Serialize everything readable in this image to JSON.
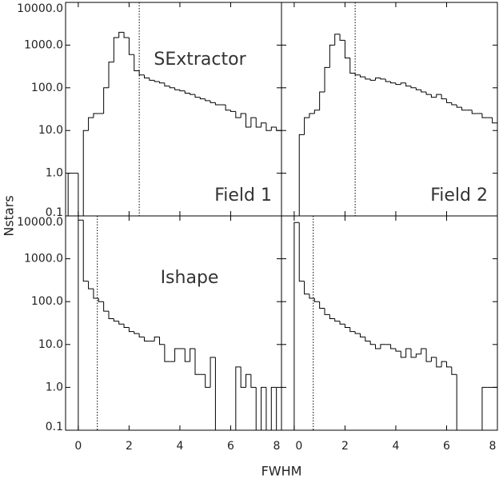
{
  "chart_data": [
    {
      "type": "histogram",
      "annotations": [
        "SExtractor",
        "Field 1"
      ],
      "vline": 2.4,
      "log": true,
      "bins": [
        -0.4,
        -0.2,
        0,
        0.2,
        0.4,
        0.6,
        0.8,
        1,
        1.2,
        1.4,
        1.6,
        1.8,
        2,
        2.2,
        2.4,
        2.6,
        2.8,
        3,
        3.2,
        3.4,
        3.6,
        3.8,
        4,
        4.2,
        4.4,
        4.6,
        4.8,
        5,
        5.2,
        5.4,
        5.6,
        5.8,
        6,
        6.2,
        6.4,
        6.6,
        6.8,
        7,
        7.2,
        7.4,
        7.6,
        7.8,
        8
      ],
      "values": [
        1,
        1,
        0,
        10,
        20,
        25,
        25,
        100,
        400,
        1500,
        2000,
        1500,
        600,
        250,
        200,
        170,
        150,
        140,
        130,
        110,
        100,
        90,
        85,
        75,
        70,
        60,
        55,
        50,
        45,
        40,
        40,
        30,
        28,
        20,
        25,
        12,
        20,
        12,
        15,
        10,
        12,
        10
      ],
      "xlim": [
        -0.5,
        8
      ],
      "xticks": [
        0,
        2,
        4,
        6,
        8
      ],
      "ylim": [
        0.1,
        10000
      ],
      "yticks": [
        0.1,
        {
          "value": 1,
          "label": "1.0"
        },
        {
          "value": 10,
          "label": "10.0"
        },
        {
          "value": 100,
          "label": "100.0"
        },
        {
          "value": 1000,
          "label": "1000.0"
        },
        {
          "value": 10000,
          "label": "10000.0"
        }
      ]
    },
    {
      "type": "histogram",
      "annotations": [
        "Field 2"
      ],
      "vline": 2.4,
      "log": true,
      "bins": [
        -0.4,
        -0.2,
        0,
        0.2,
        0.4,
        0.6,
        0.8,
        1,
        1.2,
        1.4,
        1.6,
        1.8,
        2,
        2.2,
        2.4,
        2.6,
        2.8,
        3,
        3.2,
        3.4,
        3.6,
        3.8,
        4,
        4.2,
        4.4,
        4.6,
        4.8,
        5,
        5.2,
        5.4,
        5.6,
        5.8,
        6,
        6.2,
        6.4,
        6.6,
        6.8,
        7,
        7.2,
        7.4,
        7.6,
        7.8,
        8
      ],
      "values": [
        0,
        0,
        0,
        8,
        20,
        25,
        30,
        80,
        300,
        1000,
        1800,
        1300,
        500,
        220,
        200,
        180,
        160,
        150,
        170,
        160,
        140,
        130,
        120,
        130,
        110,
        100,
        90,
        80,
        70,
        60,
        70,
        55,
        45,
        40,
        35,
        30,
        30,
        25,
        25,
        20,
        20,
        15
      ],
      "xlim": [
        -0.5,
        8
      ],
      "xticks": [
        0,
        2,
        4,
        6,
        8
      ],
      "ylim": [
        0.1,
        10000
      ],
      "yticks": [
        0.1,
        {
          "value": 1,
          "label": "1.0"
        },
        {
          "value": 10,
          "label": "10.0"
        },
        {
          "value": 100,
          "label": "100.0"
        },
        {
          "value": 1000,
          "label": "1000.0"
        },
        {
          "value": 10000,
          "label": "10000.0"
        }
      ]
    },
    {
      "type": "histogram",
      "annotations": [
        "Ishape"
      ],
      "vline": 0.75,
      "log": true,
      "xlabel": "FWHM",
      "ylabel": "Nstars",
      "bins": [
        -0.4,
        -0.2,
        0,
        0.2,
        0.4,
        0.6,
        0.8,
        1,
        1.2,
        1.4,
        1.6,
        1.8,
        2,
        2.2,
        2.4,
        2.6,
        2.8,
        3,
        3.2,
        3.4,
        3.6,
        3.8,
        4,
        4.2,
        4.4,
        4.6,
        4.8,
        5,
        5.2,
        5.4,
        5.6,
        5.8,
        6,
        6.2,
        6.4,
        6.6,
        6.8,
        7,
        7.2,
        7.4,
        7.6,
        7.8,
        8
      ],
      "values": [
        0,
        0,
        8000,
        300,
        200,
        120,
        100,
        60,
        40,
        35,
        30,
        25,
        20,
        18,
        15,
        12,
        12,
        15,
        10,
        4,
        4,
        8,
        8,
        4,
        8,
        2,
        2,
        1,
        5,
        0,
        0,
        0,
        0,
        3,
        1,
        2,
        1,
        0,
        1,
        0,
        1,
        0
      ],
      "xlim": [
        -0.5,
        8
      ],
      "xticks": [
        0,
        2,
        4,
        6,
        8
      ],
      "ylim": [
        0.1,
        10000
      ],
      "yticks": [
        0.1,
        {
          "value": 1,
          "label": "1.0"
        },
        {
          "value": 10,
          "label": "10.0"
        },
        {
          "value": 100,
          "label": "100.0"
        },
        {
          "value": 1000,
          "label": "1000.0"
        },
        {
          "value": 10000,
          "label": "10000.0"
        }
      ]
    },
    {
      "type": "histogram",
      "annotations": [],
      "vline": 0.75,
      "log": true,
      "bins": [
        -0.4,
        -0.2,
        0,
        0.2,
        0.4,
        0.6,
        0.8,
        1,
        1.2,
        1.4,
        1.6,
        1.8,
        2,
        2.2,
        2.4,
        2.6,
        2.8,
        3,
        3.2,
        3.4,
        3.6,
        3.8,
        4,
        4.2,
        4.4,
        4.6,
        4.8,
        5,
        5.2,
        5.4,
        5.6,
        5.8,
        6,
        6.2,
        6.4,
        6.6,
        6.8,
        7,
        7.2,
        7.4,
        7.6,
        7.8,
        8
      ],
      "values": [
        0,
        0,
        7000,
        300,
        150,
        120,
        100,
        70,
        50,
        40,
        35,
        30,
        25,
        20,
        18,
        15,
        12,
        10,
        8,
        10,
        10,
        8,
        7,
        5,
        8,
        5,
        6,
        8,
        4,
        5,
        3,
        4,
        3,
        2,
        0,
        0,
        0,
        0,
        0,
        1,
        1,
        1
      ],
      "xlim": [
        -0.5,
        8
      ],
      "xticks": [
        0,
        2,
        4,
        6,
        8
      ],
      "ylim": [
        0.1,
        10000
      ],
      "yticks": [
        0.1,
        {
          "value": 1,
          "label": "1.0"
        },
        {
          "value": 10,
          "label": "10.0"
        },
        {
          "value": 100,
          "label": "100.0"
        },
        {
          "value": 1000,
          "label": "1000.0"
        },
        {
          "value": 10000,
          "label": "10000.0"
        }
      ]
    }
  ]
}
